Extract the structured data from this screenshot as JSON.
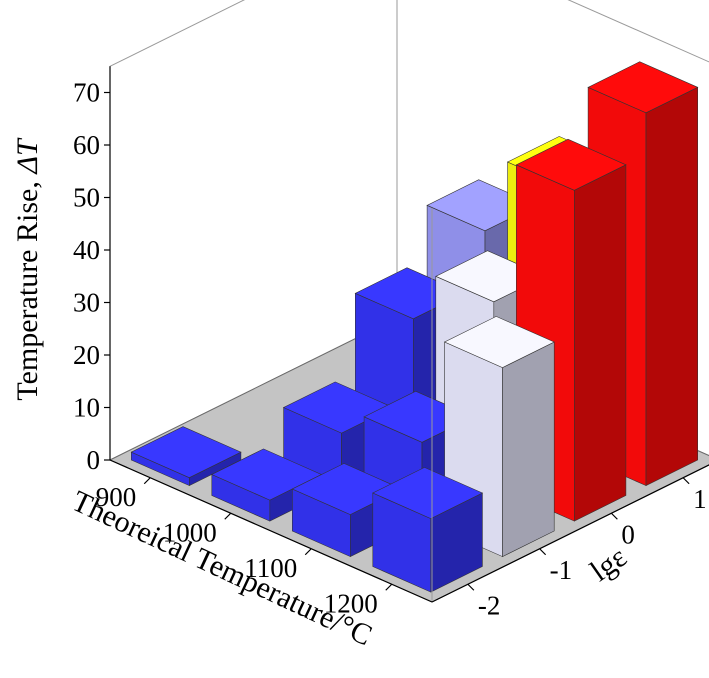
{
  "chart_data": {
    "type": "bar3d",
    "title": "",
    "xlabel": "Theoreical Temperature/°C",
    "ylabel": "lgε",
    "zlabel_text": "Temperature Rise, ",
    "zlabel_symbol": "ΔT",
    "x_categories": [
      "900",
      "1000",
      "1100",
      "1200"
    ],
    "y_categories": [
      "-2",
      "-1",
      "0",
      "1"
    ],
    "z_ticks": [
      "0",
      "10",
      "20",
      "30",
      "40",
      "50",
      "60",
      "70"
    ],
    "zlim": [
      0,
      75
    ],
    "grid": false,
    "colors": {
      "blue": "#3434f4",
      "light_blue": "#9696f4",
      "lavender": "#e6e6fc",
      "yellow": "#f8f810",
      "red": "#ff0a0a",
      "floor": "#c4c4c4"
    },
    "bars": [
      {
        "x": "900",
        "y": "-2",
        "value": 1.5,
        "color": "blue"
      },
      {
        "x": "900",
        "y": "-1",
        "value": 0,
        "color": "blue"
      },
      {
        "x": "900",
        "y": "0",
        "value": 0,
        "color": "blue"
      },
      {
        "x": "900",
        "y": "1",
        "value": 0,
        "color": "blue"
      },
      {
        "x": "1000",
        "y": "-2",
        "value": 4,
        "color": "blue"
      },
      {
        "x": "1000",
        "y": "-1",
        "value": 10,
        "color": "blue"
      },
      {
        "x": "1000",
        "y": "0",
        "value": 25,
        "color": "blue"
      },
      {
        "x": "1000",
        "y": "1",
        "value": 35,
        "color": "light_blue"
      },
      {
        "x": "1100",
        "y": "-2",
        "value": 8,
        "color": "blue"
      },
      {
        "x": "1100",
        "y": "-1",
        "value": 15,
        "color": "blue"
      },
      {
        "x": "1100",
        "y": "0",
        "value": 35,
        "color": "lavender"
      },
      {
        "x": "1100",
        "y": "1",
        "value": 50,
        "color": "yellow"
      },
      {
        "x": "1200",
        "y": "-2",
        "value": 14,
        "color": "blue"
      },
      {
        "x": "1200",
        "y": "-1",
        "value": 36,
        "color": "lavender"
      },
      {
        "x": "1200",
        "y": "0",
        "value": 63,
        "color": "red"
      },
      {
        "x": "1200",
        "y": "1",
        "value": 71,
        "color": "red"
      }
    ]
  }
}
